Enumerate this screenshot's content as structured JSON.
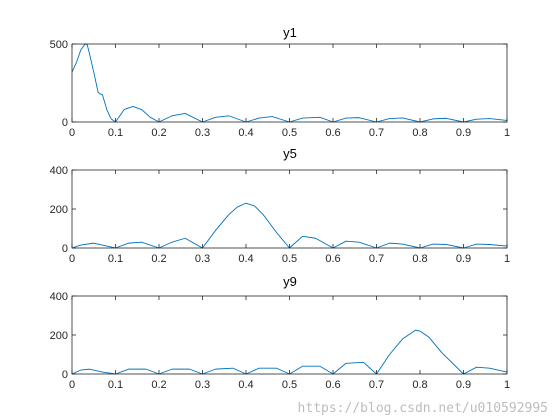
{
  "figure": {
    "watermark": "https://blog.csdn.net/u010592995"
  },
  "chart_data": [
    {
      "type": "line",
      "title": "y1",
      "xlim": [
        0,
        1
      ],
      "ylim": [
        0,
        500
      ],
      "xticks": [
        "0",
        "0.1",
        "0.2",
        "0.3",
        "0.4",
        "0.5",
        "0.6",
        "0.7",
        "0.8",
        "0.9",
        "1"
      ],
      "yticks": [
        "0",
        "500"
      ],
      "line_color": "#0072BD",
      "series": [
        {
          "x": [
            0,
            0.01,
            0.02,
            0.03,
            0.035,
            0.04,
            0.05,
            0.06,
            0.065,
            0.07,
            0.08,
            0.09,
            0.1,
            0.11,
            0.12,
            0.14,
            0.16,
            0.18,
            0.2,
            0.23,
            0.26,
            0.3,
            0.33,
            0.36,
            0.4,
            0.43,
            0.46,
            0.5,
            0.53,
            0.57,
            0.6,
            0.63,
            0.66,
            0.7,
            0.73,
            0.76,
            0.8,
            0.83,
            0.86,
            0.9,
            0.93,
            0.96,
            1.0
          ],
          "y": [
            320,
            380,
            460,
            500,
            495,
            440,
            320,
            190,
            180,
            175,
            80,
            20,
            0,
            40,
            80,
            100,
            80,
            30,
            0,
            40,
            55,
            0,
            30,
            40,
            0,
            25,
            35,
            0,
            25,
            30,
            0,
            25,
            28,
            0,
            22,
            26,
            0,
            20,
            24,
            0,
            18,
            22,
            10
          ]
        }
      ]
    },
    {
      "type": "line",
      "title": "y5",
      "xlim": [
        0,
        1
      ],
      "ylim": [
        0,
        400
      ],
      "xticks": [
        "0",
        "0.1",
        "0.2",
        "0.3",
        "0.4",
        "0.5",
        "0.6",
        "0.7",
        "0.8",
        "0.9",
        "1"
      ],
      "yticks": [
        "0",
        "200",
        "400"
      ],
      "line_color": "#0072BD",
      "series": [
        {
          "x": [
            0,
            0.02,
            0.05,
            0.08,
            0.1,
            0.13,
            0.16,
            0.2,
            0.23,
            0.26,
            0.3,
            0.33,
            0.36,
            0.38,
            0.4,
            0.42,
            0.44,
            0.47,
            0.5,
            0.53,
            0.56,
            0.6,
            0.63,
            0.66,
            0.7,
            0.73,
            0.76,
            0.8,
            0.83,
            0.86,
            0.9,
            0.93,
            0.96,
            1.0
          ],
          "y": [
            0,
            15,
            25,
            10,
            0,
            25,
            30,
            0,
            30,
            50,
            0,
            90,
            170,
            210,
            230,
            215,
            170,
            80,
            0,
            60,
            50,
            0,
            35,
            30,
            0,
            25,
            20,
            0,
            20,
            18,
            0,
            20,
            18,
            10
          ]
        }
      ]
    },
    {
      "type": "line",
      "title": "y9",
      "xlim": [
        0,
        1
      ],
      "ylim": [
        0,
        400
      ],
      "xticks": [
        "0",
        "0.1",
        "0.2",
        "0.3",
        "0.4",
        "0.5",
        "0.6",
        "0.7",
        "0.8",
        "0.9",
        "1"
      ],
      "yticks": [
        "0",
        "200",
        "400"
      ],
      "line_color": "#0072BD",
      "series": [
        {
          "x": [
            0,
            0.02,
            0.04,
            0.07,
            0.1,
            0.13,
            0.17,
            0.2,
            0.23,
            0.27,
            0.3,
            0.33,
            0.37,
            0.4,
            0.43,
            0.47,
            0.5,
            0.53,
            0.57,
            0.6,
            0.63,
            0.67,
            0.7,
            0.73,
            0.76,
            0.79,
            0.8,
            0.82,
            0.85,
            0.9,
            0.93,
            0.96,
            1.0
          ],
          "y": [
            0,
            20,
            25,
            10,
            0,
            25,
            25,
            0,
            25,
            25,
            0,
            25,
            30,
            0,
            30,
            30,
            0,
            40,
            40,
            0,
            55,
            60,
            0,
            100,
            180,
            225,
            220,
            190,
            110,
            0,
            35,
            30,
            10
          ]
        }
      ]
    }
  ]
}
